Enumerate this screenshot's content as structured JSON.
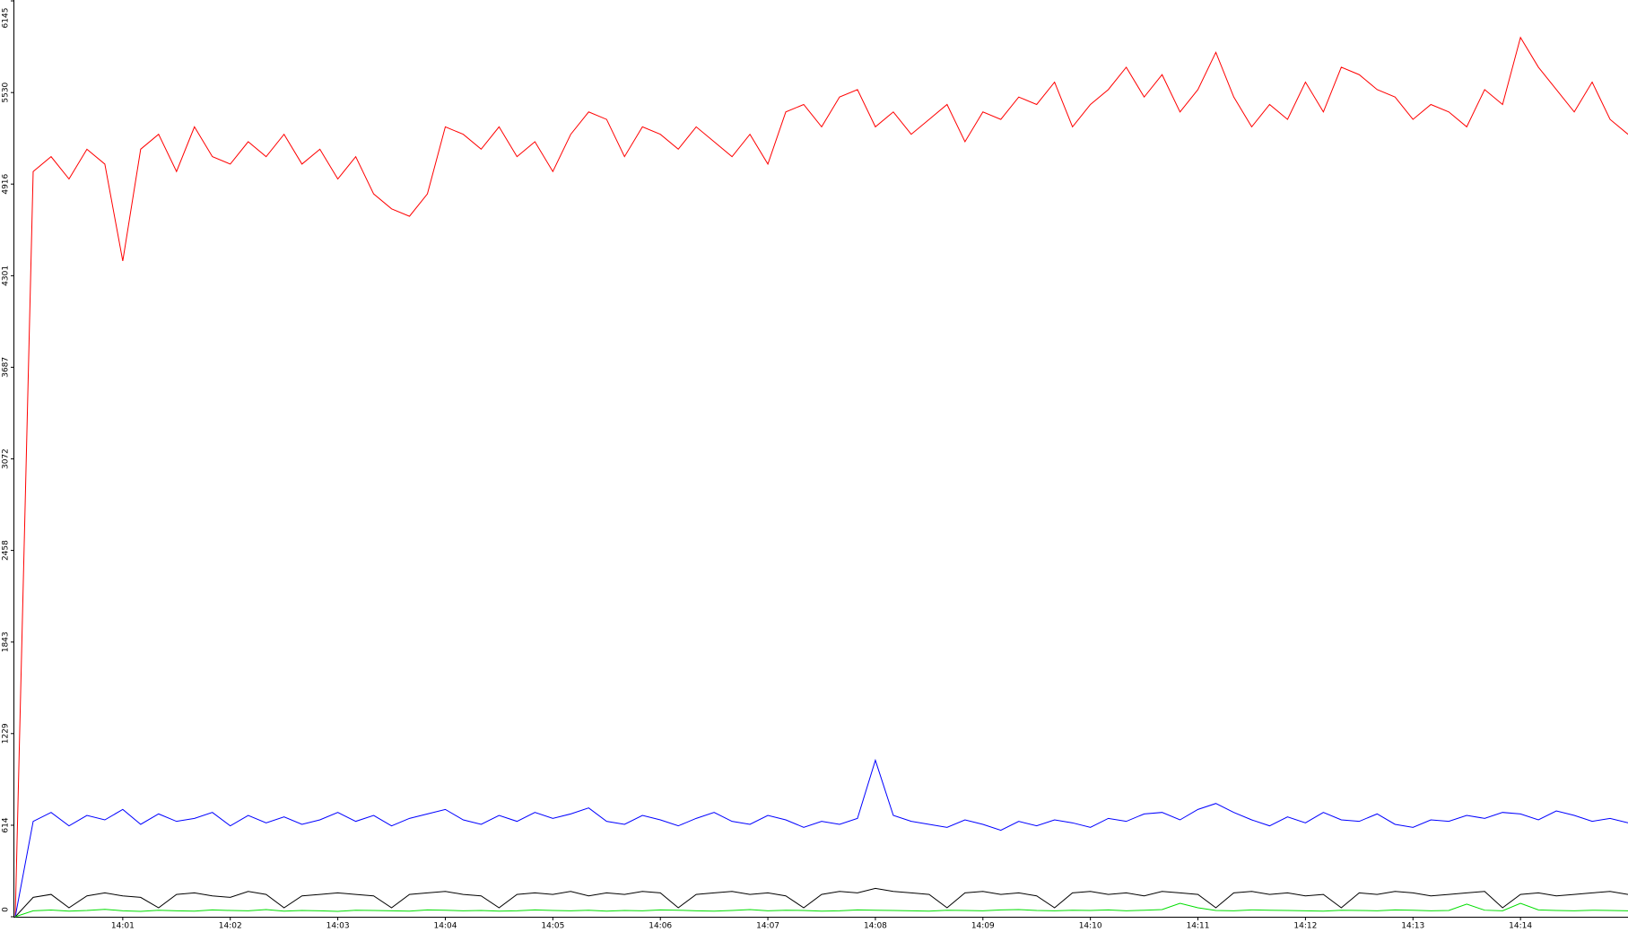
{
  "chart_data": {
    "type": "line",
    "categories": [
      null,
      null,
      null,
      null,
      null,
      null,
      "14:01",
      null,
      null,
      null,
      null,
      null,
      "14:02",
      null,
      null,
      null,
      null,
      null,
      "14:03",
      null,
      null,
      null,
      null,
      null,
      "14:04",
      null,
      null,
      null,
      null,
      null,
      "14:05",
      null,
      null,
      null,
      null,
      null,
      "14:06",
      null,
      null,
      null,
      null,
      null,
      "14:07",
      null,
      null,
      null,
      null,
      null,
      "14:08",
      null,
      null,
      null,
      null,
      null,
      "14:09",
      null,
      null,
      null,
      null,
      null,
      "14:10",
      null,
      null,
      null,
      null,
      null,
      "14:11",
      null,
      null,
      null,
      null,
      null,
      "14:12",
      null,
      null,
      null,
      null,
      null,
      "14:13",
      null,
      null,
      null,
      null,
      null,
      "14:14",
      null,
      null,
      null,
      null,
      null,
      null
    ],
    "ylim": [
      0,
      6145
    ],
    "yticks": [
      0,
      614,
      1229,
      1843,
      2458,
      3072,
      3687,
      4301,
      4916,
      5530,
      6145
    ],
    "series": [
      {
        "color": "#ff0000",
        "values": [
          0,
          5000,
          5100,
          4950,
          5150,
          5050,
          4400,
          5150,
          5250,
          5000,
          5300,
          5100,
          5050,
          5200,
          5100,
          5250,
          5050,
          5150,
          4950,
          5100,
          4850,
          4750,
          4700,
          4850,
          5300,
          5250,
          5150,
          5300,
          5100,
          5200,
          5000,
          5250,
          5400,
          5350,
          5100,
          5300,
          5250,
          5150,
          5300,
          5200,
          5100,
          5250,
          5050,
          5400,
          5450,
          5300,
          5500,
          5550,
          5300,
          5400,
          5250,
          5350,
          5450,
          5200,
          5400,
          5350,
          5500,
          5450,
          5600,
          5300,
          5450,
          5550,
          5700,
          5500,
          5650,
          5400,
          5550,
          5800,
          5500,
          5300,
          5450,
          5350,
          5600,
          5400,
          5700,
          5650,
          5550,
          5500,
          5350,
          5450,
          5400,
          5300,
          5550,
          5450,
          5900,
          5700,
          5550,
          5400,
          5600,
          5350,
          5250
        ]
      },
      {
        "color": "#0000ff",
        "values": [
          0,
          640,
          700,
          610,
          680,
          650,
          720,
          620,
          690,
          640,
          660,
          700,
          610,
          680,
          630,
          670,
          620,
          650,
          700,
          640,
          680,
          610,
          660,
          690,
          720,
          650,
          620,
          680,
          640,
          700,
          660,
          690,
          730,
          640,
          620,
          680,
          650,
          610,
          660,
          700,
          640,
          620,
          680,
          650,
          600,
          640,
          620,
          660,
          1050,
          680,
          640,
          620,
          600,
          650,
          620,
          580,
          640,
          610,
          650,
          630,
          600,
          660,
          640,
          690,
          700,
          650,
          720,
          760,
          700,
          650,
          610,
          670,
          630,
          700,
          650,
          640,
          690,
          620,
          600,
          650,
          640,
          680,
          660,
          700,
          690,
          650,
          710,
          680,
          640,
          660,
          630
        ]
      },
      {
        "color": "#000000",
        "values": [
          0,
          130,
          150,
          60,
          140,
          160,
          140,
          130,
          60,
          150,
          160,
          140,
          130,
          170,
          150,
          60,
          140,
          150,
          160,
          150,
          140,
          60,
          150,
          160,
          170,
          150,
          140,
          60,
          150,
          160,
          150,
          170,
          140,
          160,
          150,
          170,
          160,
          60,
          150,
          160,
          170,
          150,
          160,
          140,
          60,
          150,
          170,
          160,
          190,
          170,
          160,
          150,
          60,
          160,
          170,
          150,
          160,
          140,
          60,
          160,
          170,
          150,
          160,
          140,
          170,
          160,
          150,
          60,
          160,
          170,
          150,
          160,
          140,
          150,
          60,
          160,
          150,
          170,
          160,
          140,
          150,
          160,
          170,
          60,
          150,
          160,
          140,
          150,
          160,
          170,
          150
        ]
      },
      {
        "color": "#00dd00",
        "values": [
          0,
          40,
          45,
          38,
          42,
          50,
          40,
          36,
          44,
          40,
          38,
          46,
          42,
          40,
          48,
          38,
          42,
          40,
          36,
          44,
          42,
          40,
          38,
          46,
          44,
          40,
          42,
          38,
          40,
          46,
          42,
          40,
          44,
          38,
          42,
          40,
          46,
          44,
          40,
          38,
          42,
          48,
          40,
          44,
          42,
          38,
          40,
          46,
          44,
          42,
          40,
          38,
          44,
          42,
          40,
          46,
          48,
          42,
          40,
          44,
          42,
          46,
          40,
          44,
          48,
          90,
          60,
          42,
          40,
          46,
          44,
          42,
          40,
          38,
          44,
          42,
          40,
          46,
          44,
          40,
          42,
          85,
          44,
          40,
          90,
          46,
          42,
          40,
          44,
          42,
          40
        ]
      }
    ]
  }
}
